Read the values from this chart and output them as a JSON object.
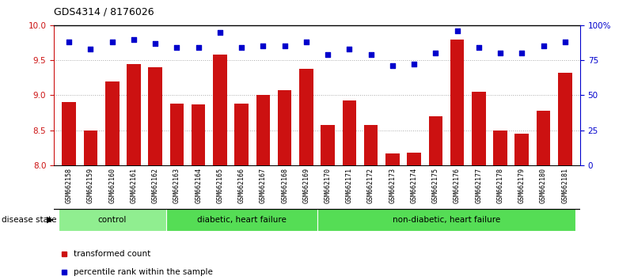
{
  "title": "GDS4314 / 8176026",
  "categories": [
    "GSM662158",
    "GSM662159",
    "GSM662160",
    "GSM662161",
    "GSM662162",
    "GSM662163",
    "GSM662164",
    "GSM662165",
    "GSM662166",
    "GSM662167",
    "GSM662168",
    "GSM662169",
    "GSM662170",
    "GSM662171",
    "GSM662172",
    "GSM662173",
    "GSM662174",
    "GSM662175",
    "GSM662176",
    "GSM662177",
    "GSM662178",
    "GSM662179",
    "GSM662180",
    "GSM662181"
  ],
  "bar_values": [
    8.9,
    8.5,
    9.2,
    9.45,
    9.4,
    8.88,
    8.87,
    9.58,
    8.88,
    9.0,
    9.07,
    9.38,
    8.57,
    8.92,
    8.57,
    8.17,
    8.18,
    8.7,
    9.8,
    9.05,
    8.5,
    8.45,
    8.78,
    9.32
  ],
  "percentile_values": [
    88,
    83,
    88,
    90,
    87,
    84,
    84,
    95,
    84,
    85,
    85,
    88,
    79,
    83,
    79,
    71,
    72,
    80,
    96,
    84,
    80,
    80,
    85,
    88
  ],
  "bar_color": "#cc1111",
  "dot_color": "#0000cc",
  "ylim_left": [
    8.0,
    10.0
  ],
  "ylim_right": [
    0,
    100
  ],
  "yticks_left": [
    8.0,
    8.5,
    9.0,
    9.5,
    10.0
  ],
  "yticks_right": [
    0,
    25,
    50,
    75,
    100
  ],
  "ytick_labels_right": [
    "0",
    "25",
    "50",
    "75",
    "100%"
  ],
  "group_specs": [
    {
      "start": 0,
      "end": 4,
      "label": "control",
      "color": "#90ee90"
    },
    {
      "start": 5,
      "end": 11,
      "label": "diabetic, heart failure",
      "color": "#55dd55"
    },
    {
      "start": 12,
      "end": 23,
      "label": "non-diabetic, heart failure",
      "color": "#55dd55"
    }
  ],
  "disease_state_label": "disease state",
  "background_color": "#ffffff",
  "grid_color": "#aaaaaa",
  "ticklabel_bg": "#cccccc"
}
